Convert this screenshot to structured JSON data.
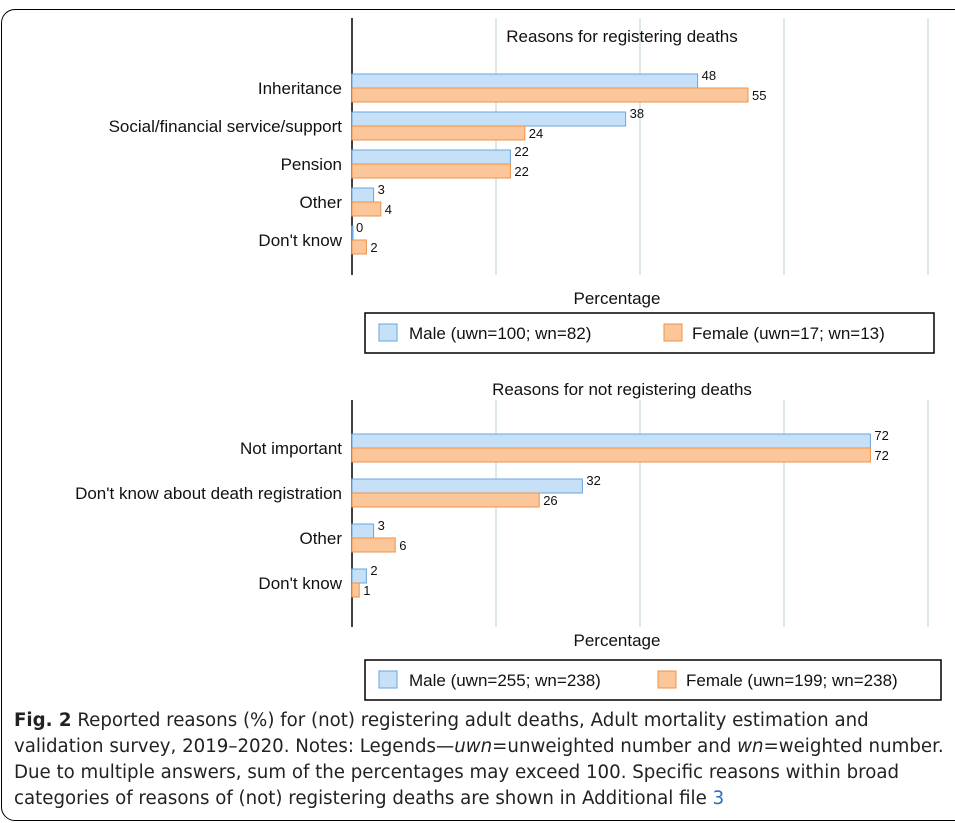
{
  "colors": {
    "male_fill": "#c6e0f7",
    "male_stroke": "#6aa6dc",
    "female_fill": "#fbc79a",
    "female_stroke": "#f29045",
    "grid": "#dfe8e8"
  },
  "chart_data": [
    {
      "type": "bar",
      "orientation": "horizontal",
      "title": "Reasons for registering deaths",
      "xlabel": "Percentage",
      "xlim": [
        0,
        100
      ],
      "grid": true,
      "categories": [
        "Inheritance",
        "Social/financial service/support",
        "Pension",
        "Other",
        "Don't know"
      ],
      "series": [
        {
          "name": "Male (uwn=100; wn=82)",
          "values": [
            48,
            38,
            22,
            3,
            0
          ]
        },
        {
          "name": "Female (uwn=17; wn=13)",
          "values": [
            55,
            24,
            22,
            4,
            2
          ]
        }
      ],
      "legend": "bottom"
    },
    {
      "type": "bar",
      "orientation": "horizontal",
      "title": "Reasons for not registering deaths",
      "xlabel": "Percentage",
      "xlim": [
        0,
        100
      ],
      "grid": true,
      "categories": [
        "Not important",
        "Don't know about death registration",
        "Other",
        "Don't know"
      ],
      "series": [
        {
          "name": "Male (uwn=255; wn=238)",
          "values": [
            72,
            32,
            3,
            2
          ]
        },
        {
          "name": "Female (uwn=199; wn=238)",
          "values": [
            72,
            26,
            6,
            1
          ]
        }
      ],
      "legend": "bottom"
    }
  ],
  "caption": {
    "label": "Fig. 2",
    "text_1": " Reported reasons (%) for (not) registering adult deaths, Adult mortality estimation and validation survey, 2019–2020. Notes: Legends—",
    "uwn": "uwn",
    "text_2": "=unweighted number and ",
    "wn": "wn",
    "text_3": "=weighted number. Due to multiple answers, sum of the percentages may exceed 100. Specific reasons within broad categories of reasons of (not) registering deaths are shown in Additional file ",
    "link": "3"
  }
}
